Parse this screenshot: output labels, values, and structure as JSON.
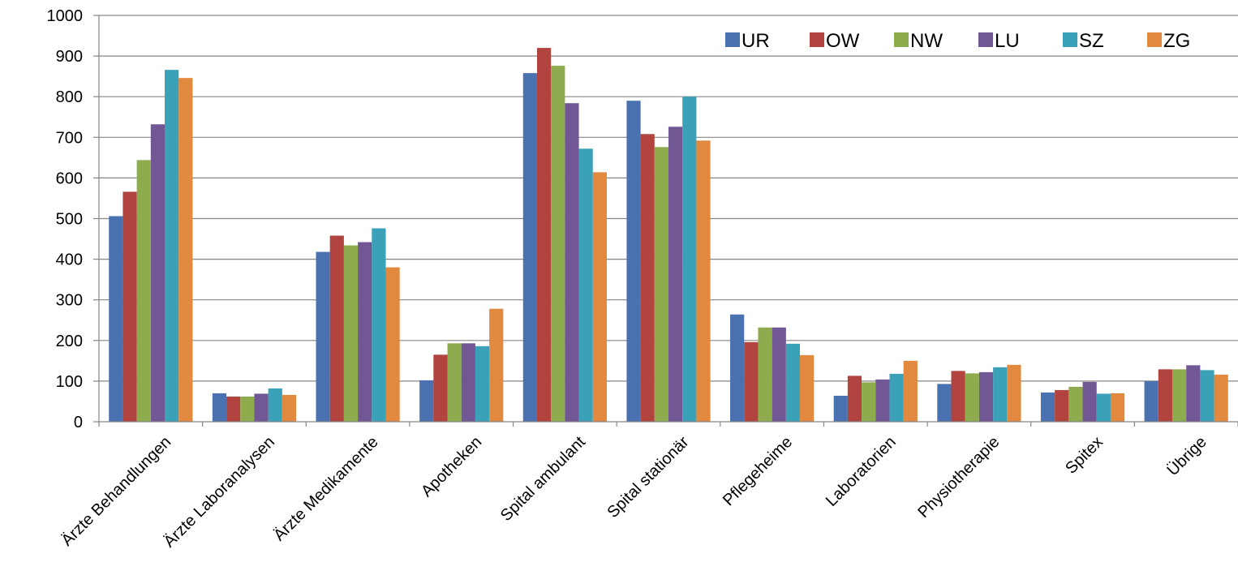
{
  "chart_data": {
    "type": "bar",
    "title": "",
    "xlabel": "",
    "ylabel": "",
    "ylim": [
      0,
      1000
    ],
    "yticks": [
      0,
      100,
      200,
      300,
      400,
      500,
      600,
      700,
      800,
      900,
      1000
    ],
    "grid": true,
    "legend_position": "top-right",
    "categories": [
      "Ärzte Behandlungen",
      "Ärzte Laboranalysen",
      "Ärzte Medikamente",
      "Apotheken",
      "Spital ambulant",
      "Spital stationär",
      "Pflegeheime",
      "Laboratorien",
      "Physiotherapie",
      "Spitex",
      "Übrige"
    ],
    "series": [
      {
        "name": "UR",
        "color": "#4a72b0",
        "values": [
          506,
          70,
          418,
          102,
          858,
          790,
          264,
          64,
          93,
          72,
          100
        ]
      },
      {
        "name": "OW",
        "color": "#b2443f",
        "values": [
          566,
          62,
          458,
          165,
          920,
          708,
          196,
          113,
          125,
          78,
          129
        ]
      },
      {
        "name": "NW",
        "color": "#8eac4d",
        "values": [
          644,
          62,
          434,
          193,
          876,
          676,
          232,
          97,
          119,
          86,
          129
        ]
      },
      {
        "name": "LU",
        "color": "#715793",
        "values": [
          732,
          69,
          442,
          193,
          784,
          726,
          232,
          104,
          122,
          98,
          139
        ]
      },
      {
        "name": "SZ",
        "color": "#3ba1b8",
        "values": [
          866,
          82,
          476,
          186,
          672,
          800,
          192,
          118,
          134,
          69,
          127
        ]
      },
      {
        "name": "ZG",
        "color": "#e0893f",
        "values": [
          846,
          66,
          380,
          278,
          614,
          692,
          164,
          150,
          140,
          70,
          116
        ]
      }
    ],
    "axis_color": "#868686",
    "grid_color": "#868686"
  }
}
